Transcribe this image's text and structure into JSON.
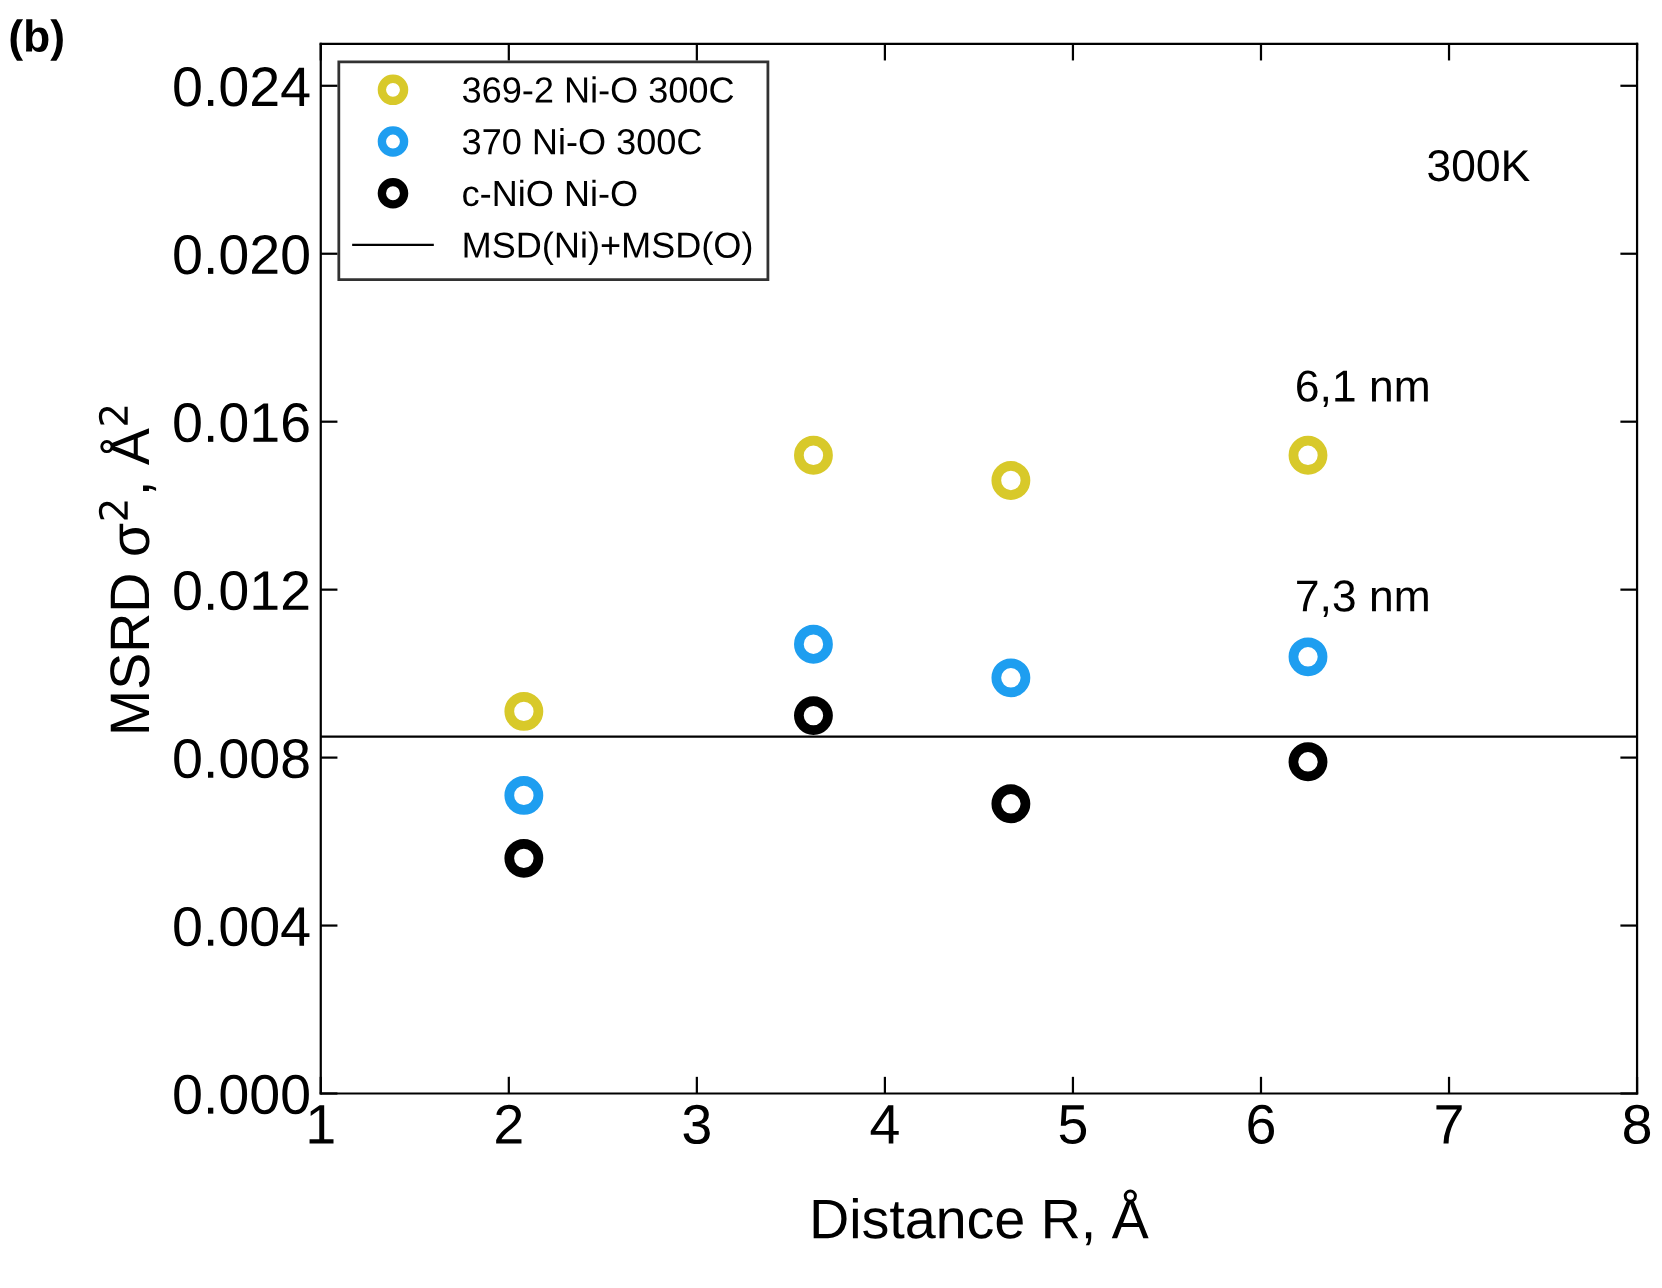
{
  "chart_data": {
    "type": "scatter",
    "xlabel": "Distance R, Å",
    "ylabel": "MSRD σ$^{2}$, Å$^{2}$",
    "x": [
      2.08,
      3.62,
      4.67,
      6.25
    ],
    "series": [
      {
        "name": "369-2 Ni-O 300C",
        "color": "#d8c92a",
        "values": [
          0.0091,
          0.0152,
          0.0146,
          0.0152
        ]
      },
      {
        "name": "370 Ni-O 300C",
        "color": "#1e9ef0",
        "values": [
          0.0071,
          0.0107,
          0.0099,
          0.0104
        ]
      },
      {
        "name": "c-NiO Ni-O",
        "color": "#000000",
        "values": [
          0.0056,
          0.009,
          0.0069,
          0.0079
        ]
      }
    ],
    "ref_lines": [
      {
        "axis": "y",
        "value": 0.0085,
        "label": "MSD(Ni)+MSD(O)",
        "color": "#000000",
        "line_style": "solid"
      }
    ],
    "annotations": [
      "(b)",
      "300K",
      "6,1 nm",
      "7,3 nm"
    ],
    "xlim": [
      1,
      8
    ],
    "xticks": [
      1,
      2,
      3,
      4,
      5,
      6,
      7,
      8
    ],
    "ylim": [
      0,
      0.025
    ],
    "yticks": [
      {
        "value": 0,
        "label": "0.000"
      },
      {
        "value": 0.004,
        "label": "0.004"
      },
      {
        "value": 0.008,
        "label": "0.008"
      },
      {
        "value": 0.012,
        "label": "0.012"
      },
      {
        "value": 0.016,
        "label": "0.016"
      },
      {
        "value": 0.02,
        "label": "0.020"
      },
      {
        "value": 0.024,
        "label": "0.024"
      }
    ],
    "marker": "circle",
    "legend": "top left",
    "grid": false
  }
}
